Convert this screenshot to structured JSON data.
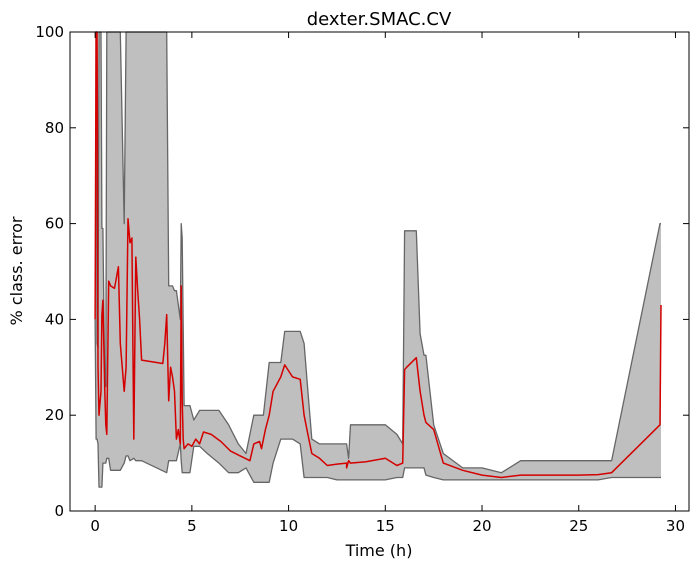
{
  "chart_data": {
    "type": "line",
    "title": "dexter.SMAC.CV",
    "xlabel": "Time (h)",
    "ylabel": "% class. error",
    "xlim": [
      -1.3,
      30.7
    ],
    "ylim": [
      0,
      100
    ],
    "xticks": [
      0,
      5,
      10,
      15,
      20,
      25,
      30
    ],
    "yticks": [
      0,
      20,
      40,
      60,
      80,
      100
    ],
    "grid": false,
    "colors": {
      "band_fill": "#bfbfbf",
      "band_edge": "#666666",
      "mean_line": "#d40000"
    },
    "series": [
      {
        "kind": "band-upper",
        "x": [
          0,
          0.05,
          0.1,
          0.15,
          0.2,
          0.3,
          0.35,
          0.4,
          0.5,
          0.55,
          0.6,
          0.7,
          0.8,
          1.3,
          1.5,
          1.6,
          1.7,
          1.8,
          2.0,
          2.1,
          2.2,
          2.3,
          2.4,
          3.7,
          3.8,
          4.0,
          4.1,
          4.2,
          4.4,
          4.45,
          4.5,
          4.6,
          4.9,
          5.1,
          5.4,
          5.8,
          6.4,
          6.9,
          7.4,
          7.8,
          8.2,
          8.7,
          9.0,
          9.2,
          9.6,
          9.8,
          10.2,
          10.6,
          10.8,
          11.0,
          11.2,
          11.6,
          12.0,
          12.5,
          13.0,
          13.0,
          13.1,
          13.2,
          14.0,
          15.0,
          15.6,
          15.9,
          16.0,
          16.1,
          16.6,
          16.8,
          17.0,
          17.1,
          17.5,
          18.0,
          19.0,
          20.0,
          21.0,
          22.0,
          25.0,
          26.0,
          26.7,
          29.2,
          29.25
        ],
        "y": [
          100,
          100,
          35,
          34,
          100,
          100,
          59,
          59,
          26,
          26,
          100,
          100,
          100,
          100,
          60,
          100,
          100,
          100,
          100,
          100,
          100,
          100,
          100,
          100,
          47,
          47,
          46,
          46,
          40,
          60,
          57,
          22,
          22,
          19,
          21,
          21,
          21,
          18,
          14,
          12,
          20,
          20,
          31,
          31,
          31,
          37.5,
          37.5,
          37.5,
          35,
          25,
          15,
          14,
          14,
          14,
          14,
          14,
          11,
          18,
          18,
          18,
          16,
          14,
          58.5,
          58.5,
          58.5,
          37,
          32.5,
          32.5,
          18,
          12,
          9,
          9,
          8,
          10.5,
          10.5,
          10.5,
          10.5,
          60,
          60
        ]
      },
      {
        "kind": "band-lower",
        "x": [
          0,
          0.05,
          0.1,
          0.15,
          0.2,
          0.3,
          0.35,
          0.4,
          0.5,
          0.55,
          0.6,
          0.7,
          0.8,
          1.3,
          1.5,
          1.6,
          1.7,
          1.8,
          2.0,
          2.1,
          2.2,
          2.3,
          2.4,
          3.7,
          3.8,
          4.0,
          4.1,
          4.2,
          4.4,
          4.45,
          4.5,
          4.6,
          4.9,
          5.1,
          5.4,
          5.8,
          6.4,
          6.9,
          7.4,
          7.8,
          8.2,
          8.7,
          9.0,
          9.2,
          9.6,
          9.8,
          10.2,
          10.6,
          10.8,
          11.0,
          11.2,
          11.6,
          12.0,
          12.5,
          13.0,
          13.0,
          13.1,
          13.2,
          14.0,
          15.0,
          15.6,
          15.9,
          16.0,
          16.1,
          16.6,
          16.8,
          17.0,
          17.1,
          17.5,
          18.0,
          19.0,
          20.0,
          21.0,
          22.0,
          25.0,
          26.0,
          26.7,
          29.2,
          29.25
        ],
        "y": [
          40,
          15,
          15,
          14,
          5,
          5,
          5,
          10,
          10,
          10,
          11,
          11,
          8.5,
          8.5,
          10,
          11.5,
          11.5,
          10.5,
          11,
          10.5,
          10.5,
          10.5,
          10.5,
          8,
          10.5,
          10.5,
          10.5,
          10.5,
          14,
          10.5,
          8,
          8,
          8,
          13.5,
          13.5,
          12,
          10,
          8,
          8,
          9,
          6,
          6,
          6,
          10,
          15,
          15,
          15,
          14,
          7,
          7,
          7,
          7,
          7,
          6.5,
          6.5,
          6.5,
          6.5,
          6.5,
          6.5,
          6.5,
          7,
          7,
          9,
          9,
          9,
          9,
          9,
          7.5,
          7,
          6.5,
          6.5,
          6.5,
          6.5,
          6.5,
          6.5,
          6.5,
          7,
          7,
          7
        ]
      },
      {
        "kind": "mean",
        "x": [
          0,
          0.05,
          0.1,
          0.15,
          0.2,
          0.3,
          0.35,
          0.4,
          0.5,
          0.55,
          0.6,
          0.7,
          0.8,
          1.0,
          1.2,
          1.3,
          1.5,
          1.6,
          1.7,
          1.8,
          1.9,
          2.0,
          2.1,
          2.2,
          2.3,
          2.4,
          3.5,
          3.6,
          3.7,
          3.8,
          3.9,
          4.0,
          4.1,
          4.2,
          4.3,
          4.4,
          4.45,
          4.5,
          4.55,
          4.6,
          4.8,
          5.0,
          5.2,
          5.4,
          5.6,
          6.0,
          6.5,
          7.0,
          7.5,
          8.0,
          8.2,
          8.5,
          8.6,
          8.8,
          9.0,
          9.2,
          9.6,
          9.8,
          10.2,
          10.6,
          10.8,
          11.0,
          11.2,
          11.6,
          12.0,
          12.5,
          13.0,
          13.0,
          13.1,
          13.2,
          14.0,
          15.0,
          15.6,
          15.9,
          16.0,
          16.1,
          16.6,
          16.8,
          17.0,
          17.1,
          17.5,
          18.0,
          19.0,
          20.0,
          21.0,
          22.0,
          25.0,
          26.0,
          26.7,
          29.2,
          29.25
        ],
        "y": [
          40,
          100,
          100,
          30,
          20,
          25,
          41,
          44,
          25,
          18,
          16,
          48,
          47,
          46.5,
          51,
          35,
          25,
          30,
          61,
          56,
          57,
          15,
          53,
          46,
          40,
          31.5,
          30.8,
          35,
          41,
          23,
          30,
          28,
          25,
          15,
          17,
          14,
          47,
          23,
          15,
          13,
          14,
          13.5,
          15,
          14,
          16.5,
          16,
          14.5,
          12.5,
          11.5,
          10.5,
          14,
          14.5,
          13,
          17,
          20,
          25,
          28,
          30.5,
          28,
          27.5,
          20,
          16,
          12,
          11,
          9.5,
          9.8,
          10,
          9,
          10.5,
          10,
          10.3,
          11,
          9.5,
          10,
          29.5,
          30,
          32,
          25,
          20,
          18.5,
          17,
          10,
          8.5,
          7.5,
          7,
          7.5,
          7.5,
          7.6,
          8,
          18,
          43
        ]
      }
    ]
  }
}
